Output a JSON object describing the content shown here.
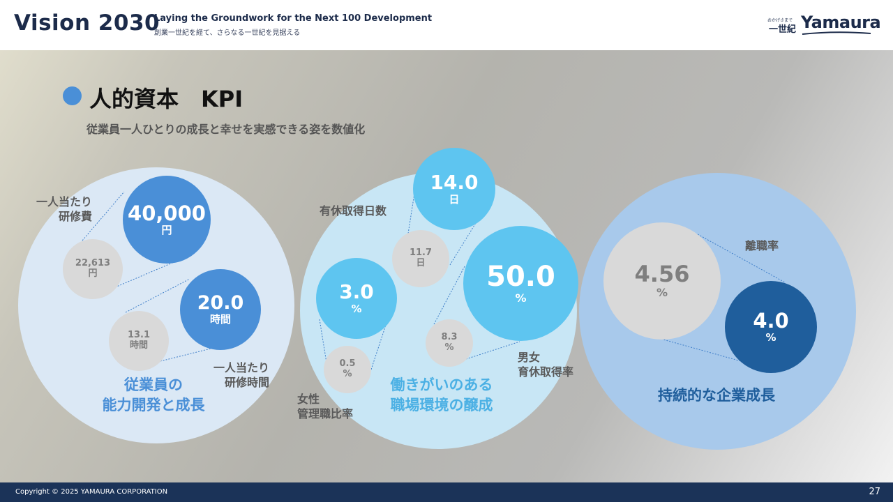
{
  "header": {
    "title": "Vision 2030",
    "tagline_en": "Laying the Groundwork for the Next 100 Development",
    "tagline_ja": "創業一世紀を経て、さらなる一世紀を見据える",
    "logo_sub": "おかげさまで",
    "logo_mark": "一世紀",
    "logo_text": "Yamaura"
  },
  "section": {
    "title": "人的資本　KPI",
    "subtitle": "従業員一人ひとりの成長と幸せを実感できる姿を数値化"
  },
  "groups": {
    "capability": {
      "title": "従業員の\n能力開発と成長",
      "kpi_cost": {
        "label": "一人当たり\n研修費",
        "target_value": "40,000",
        "target_unit": "円",
        "current_value": "22,613",
        "current_unit": "円"
      },
      "kpi_hours": {
        "label": "一人当たり\n研修時間",
        "target_value": "20.0",
        "target_unit": "時間",
        "current_value": "13.1",
        "current_unit": "時間"
      }
    },
    "workplace": {
      "title": "働きがいのある\n職場環境の醸成",
      "kpi_leave_days": {
        "label": "有休取得日数",
        "target_value": "14.0",
        "target_unit": "日",
        "current_value": "11.7",
        "current_unit": "日"
      },
      "kpi_female_mgmt": {
        "label": "女性\n管理職比率",
        "target_value": "3.0",
        "target_unit": "%",
        "current_value": "0.5",
        "current_unit": "%"
      },
      "kpi_parental_leave": {
        "label": "男女\n育休取得率",
        "target_value": "50.0",
        "target_unit": "%",
        "current_value": "8.3",
        "current_unit": "%"
      }
    },
    "sustainable": {
      "title": "持続的な企業成長",
      "kpi_turnover": {
        "label": "離職率",
        "target_value": "4.0",
        "target_unit": "%",
        "current_value": "4.56",
        "current_unit": "%"
      }
    }
  },
  "footer": {
    "copyright": "Copyright © 2025 YAMAURA CORPORATION",
    "page": "27"
  },
  "colors": {
    "navy": "#1b3358",
    "blue_dark": "#1f5e9c",
    "blue_mid": "#4a8fd7",
    "sky": "#5ec5f0",
    "grey_circle": "#d9d9d9",
    "group1_bg": "#dbe8f5",
    "group2_bg": "#c8e6f5",
    "group3_bg": "#a8c9eb"
  }
}
